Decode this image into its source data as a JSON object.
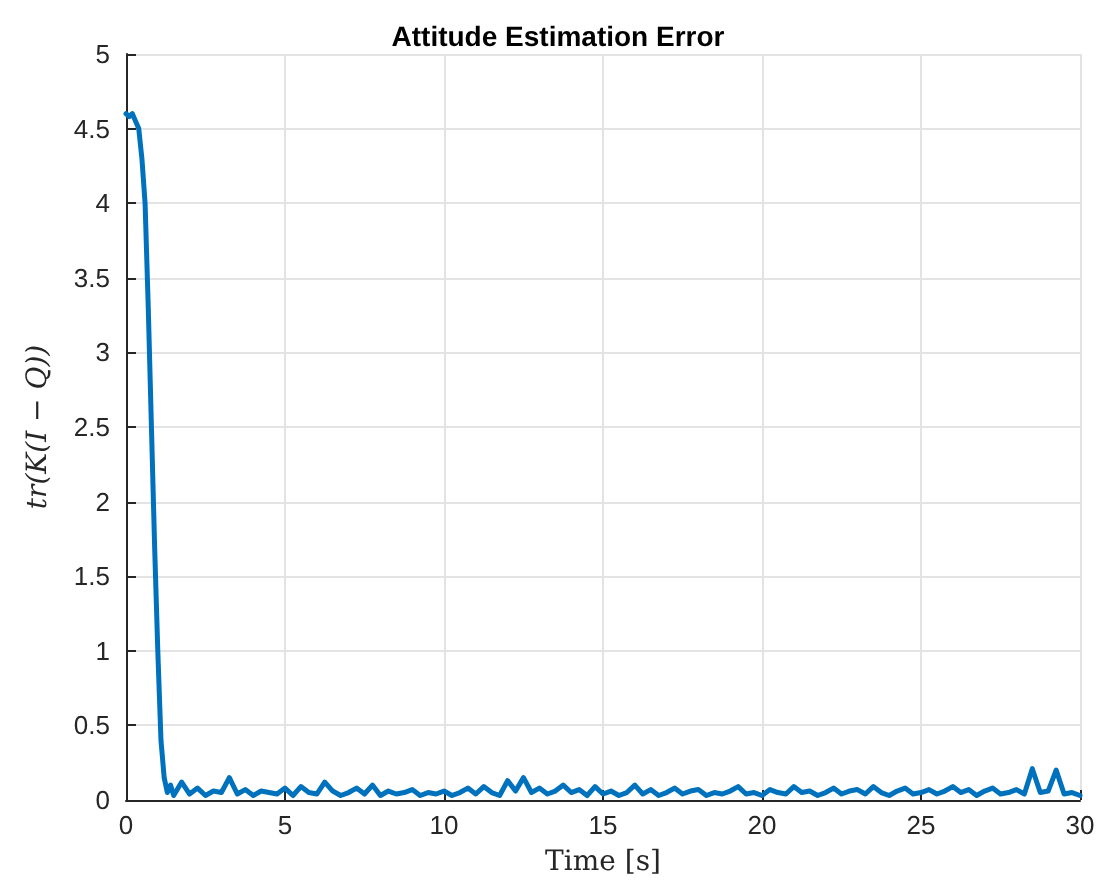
{
  "chart_data": {
    "type": "line",
    "title": "Attitude Estimation Error",
    "xlabel": "Time [s]",
    "ylabel": "tr(K(I − Q))",
    "x": [
      0,
      0.1,
      0.2,
      0.3,
      0.4,
      0.5,
      0.6,
      0.7,
      0.8,
      0.9,
      1.0,
      1.1,
      1.2,
      1.3,
      1.4,
      1.5,
      1.75,
      2,
      2.25,
      2.5,
      2.75,
      3,
      3.25,
      3.5,
      3.75,
      4,
      4.25,
      4.5,
      4.75,
      5,
      5.25,
      5.5,
      5.75,
      6,
      6.25,
      6.5,
      6.75,
      7,
      7.25,
      7.5,
      7.75,
      8,
      8.25,
      8.5,
      8.75,
      9,
      9.25,
      9.5,
      9.75,
      10,
      10.25,
      10.5,
      10.75,
      11,
      11.25,
      11.5,
      11.75,
      12,
      12.25,
      12.5,
      12.75,
      13,
      13.25,
      13.5,
      13.75,
      14,
      14.25,
      14.5,
      14.75,
      15,
      15.25,
      15.5,
      15.75,
      16,
      16.25,
      16.5,
      16.75,
      17,
      17.25,
      17.5,
      17.75,
      18,
      18.25,
      18.5,
      18.75,
      19,
      19.25,
      19.5,
      19.75,
      20,
      20.25,
      20.5,
      20.75,
      21,
      21.25,
      21.5,
      21.75,
      22,
      22.25,
      22.5,
      22.75,
      23,
      23.25,
      23.5,
      23.75,
      24,
      24.25,
      24.5,
      24.75,
      25,
      25.25,
      25.5,
      25.75,
      26,
      26.25,
      26.5,
      26.75,
      27,
      27.25,
      27.5,
      27.75,
      28,
      28.25,
      28.5,
      28.75,
      29,
      29.25,
      29.5,
      29.75,
      30
    ],
    "series": [
      {
        "color": "#0072bd",
        "values": [
          4.6,
          4.58,
          4.6,
          4.55,
          4.5,
          4.3,
          4.0,
          3.3,
          2.5,
          1.7,
          1.0,
          0.4,
          0.15,
          0.05,
          0.1,
          0.03,
          0.12,
          0.04,
          0.08,
          0.03,
          0.06,
          0.05,
          0.15,
          0.04,
          0.07,
          0.03,
          0.06,
          0.05,
          0.04,
          0.08,
          0.03,
          0.09,
          0.05,
          0.04,
          0.12,
          0.06,
          0.03,
          0.05,
          0.08,
          0.04,
          0.1,
          0.03,
          0.06,
          0.04,
          0.05,
          0.07,
          0.03,
          0.05,
          0.04,
          0.06,
          0.03,
          0.05,
          0.08,
          0.04,
          0.09,
          0.05,
          0.03,
          0.13,
          0.06,
          0.15,
          0.05,
          0.08,
          0.04,
          0.06,
          0.1,
          0.05,
          0.07,
          0.03,
          0.09,
          0.04,
          0.06,
          0.03,
          0.05,
          0.1,
          0.04,
          0.07,
          0.03,
          0.05,
          0.08,
          0.04,
          0.06,
          0.07,
          0.03,
          0.05,
          0.04,
          0.06,
          0.09,
          0.04,
          0.05,
          0.03,
          0.07,
          0.05,
          0.04,
          0.09,
          0.05,
          0.06,
          0.03,
          0.05,
          0.08,
          0.04,
          0.06,
          0.07,
          0.04,
          0.09,
          0.05,
          0.03,
          0.06,
          0.08,
          0.04,
          0.05,
          0.07,
          0.04,
          0.06,
          0.09,
          0.05,
          0.07,
          0.03,
          0.06,
          0.08,
          0.04,
          0.05,
          0.07,
          0.04,
          0.21,
          0.05,
          0.06,
          0.2,
          0.04,
          0.05,
          0.03
        ]
      }
    ],
    "xlim": [
      0,
      30
    ],
    "xticks": [
      0,
      5,
      10,
      15,
      20,
      25,
      30
    ],
    "ylim": [
      0,
      5
    ],
    "yticks": [
      0,
      0.5,
      1,
      1.5,
      2,
      2.5,
      3,
      3.5,
      4,
      4.5,
      5
    ],
    "grid": true,
    "marker": "none",
    "line_style": "solid"
  }
}
